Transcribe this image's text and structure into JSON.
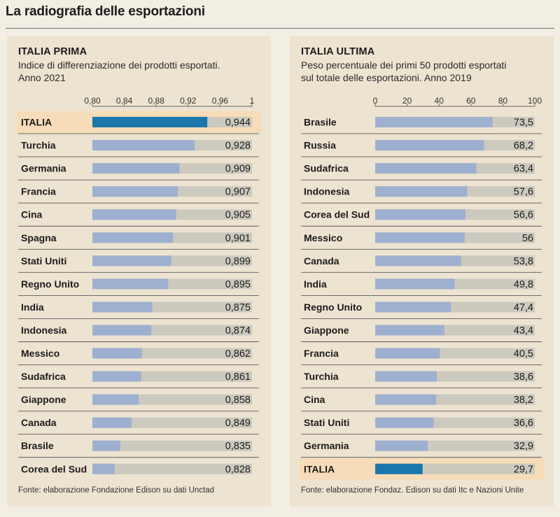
{
  "page": {
    "title": "La radiografia delle esportazioni"
  },
  "colors": {
    "background": "#f3eee3",
    "panel": "#ede3d1",
    "highlight_row": "#f6dcb8",
    "bar_default": "#9db0cf",
    "bar_highlight": "#1a78ac",
    "track": "#ccc9bf",
    "separator": "#5a5a5a"
  },
  "left_panel": {
    "title": "ITALIA PRIMA",
    "subtitle_line1": "Indice di differenziazione dei prodotti esportati.",
    "subtitle_line2": "Anno 2021",
    "source": "Fonte: elaborazione Fondazione Edison su dati Unctad"
  },
  "right_panel": {
    "title": "ITALIA ULTIMA",
    "subtitle_line1": "Peso percentuale dei primi 50 prodotti esportati",
    "subtitle_line2": "sul totale  delle esportazioni. Anno 2019",
    "source": "Fonte: elaborazione Fondaz. Edison su dati Itc e Nazioni Unite"
  },
  "chart_data": [
    {
      "type": "bar",
      "orientation": "horizontal",
      "title": "ITALIA PRIMA",
      "subtitle": "Indice di differenziazione dei prodotti esportati. Anno 2021",
      "xlim": [
        0.8,
        1
      ],
      "ticks": [
        0.8,
        0.84,
        0.88,
        0.92,
        0.96,
        1
      ],
      "tick_labels": [
        "0,80",
        "0,84",
        "0,88",
        "0,92",
        "0,96",
        "1"
      ],
      "highlight": "ITALIA",
      "categories": [
        "ITALIA",
        "Turchia",
        "Germania",
        "Francia",
        "Cina",
        "Spagna",
        "Stati Uniti",
        "Regno Unito",
        "India",
        "Indonesia",
        "Messico",
        "Sudafrica",
        "Giappone",
        "Canada",
        "Brasile",
        "Corea del Sud"
      ],
      "values": [
        0.944,
        0.928,
        0.909,
        0.907,
        0.905,
        0.901,
        0.899,
        0.895,
        0.875,
        0.874,
        0.862,
        0.861,
        0.858,
        0.849,
        0.835,
        0.828
      ],
      "value_labels": [
        "0,944",
        "0,928",
        "0,909",
        "0,907",
        "0,905",
        "0,901",
        "0,899",
        "0,895",
        "0,875",
        "0,874",
        "0,862",
        "0,861",
        "0,858",
        "0,849",
        "0,835",
        "0,828"
      ]
    },
    {
      "type": "bar",
      "orientation": "horizontal",
      "title": "ITALIA ULTIMA",
      "subtitle": "Peso percentuale dei primi 50 prodotti esportati sul totale delle esportazioni. Anno 2019",
      "xlim": [
        0,
        100
      ],
      "ticks": [
        0,
        20,
        40,
        60,
        80,
        100
      ],
      "tick_labels": [
        "0",
        "20",
        "40",
        "60",
        "80",
        "100"
      ],
      "highlight": "ITALIA",
      "categories": [
        "Brasile",
        "Russia",
        "Sudafrica",
        "Indonesia",
        "Corea del Sud",
        "Messico",
        "Canada",
        "India",
        "Regno Unito",
        "Giappone",
        "Francia",
        "Turchia",
        "Cina",
        "Stati Uniti",
        "Germania",
        "ITALIA"
      ],
      "values": [
        73.5,
        68.2,
        63.4,
        57.6,
        56.6,
        56,
        53.8,
        49.8,
        47.4,
        43.4,
        40.5,
        38.6,
        38.2,
        36.6,
        32.9,
        29.7
      ],
      "value_labels": [
        "73,5",
        "68,2",
        "63,4",
        "57,6",
        "56,6",
        "56",
        "53,8",
        "49,8",
        "47,4",
        "43,4",
        "40,5",
        "38,6",
        "38,2",
        "36,6",
        "32,9",
        "29,7"
      ]
    }
  ]
}
